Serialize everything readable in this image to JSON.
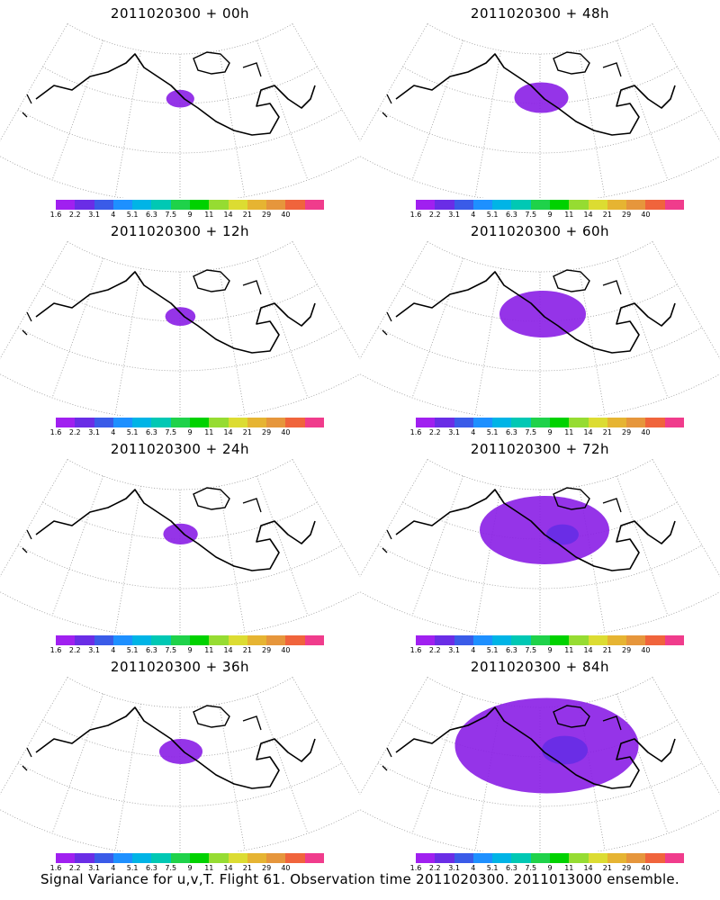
{
  "panels": [
    {
      "title": "2011020300 + 00h",
      "coverage": 0.03
    },
    {
      "title": "2011020300 + 48h",
      "coverage": 0.15
    },
    {
      "title": "2011020300 + 12h",
      "coverage": 0.04
    },
    {
      "title": "2011020300 + 60h",
      "coverage": 0.3
    },
    {
      "title": "2011020300 + 24h",
      "coverage": 0.06
    },
    {
      "title": "2011020300 + 72h",
      "coverage": 0.5
    },
    {
      "title": "2011020300 + 36h",
      "coverage": 0.1
    },
    {
      "title": "2011020300 + 84h",
      "coverage": 0.75
    }
  ],
  "colorbar": {
    "labels": [
      "1.6",
      "2.2",
      "3.1",
      "4",
      "5.1",
      "6.3",
      "7.5",
      "9",
      "11",
      "14",
      "21",
      "29",
      "40"
    ],
    "colors": [
      "#a020f0",
      "#6a2de6",
      "#3a5be8",
      "#1e90ff",
      "#00b4e6",
      "#00c8b4",
      "#1fd24a",
      "#00d200",
      "#96dc32",
      "#dcdc32",
      "#e6b432",
      "#e6963c",
      "#f0643c",
      "#f03c8c"
    ]
  },
  "footer": "Signal Variance for u,v,T. Flight 61. Observation time 2011020300. 2011013000 ensemble."
}
